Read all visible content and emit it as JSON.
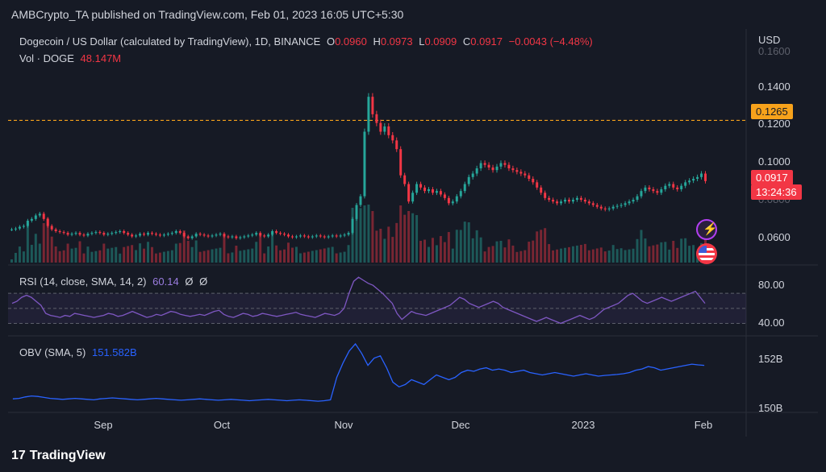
{
  "header": {
    "publisher_text": "AMBCrypto_TA published on TradingView.com, Feb 01, 2023 16:05 UTC+5:30"
  },
  "main_legend": {
    "symbol": "Dogecoin / US Dollar (calculated by TradingView), 1D, BINANCE",
    "o_label": "O",
    "o_value": "0.0960",
    "h_label": "H",
    "h_value": "0.0973",
    "l_label": "L",
    "l_value": "0.0909",
    "c_label": "C",
    "c_value": "0.0917",
    "change": "−0.0043 (−4.48%)"
  },
  "vol_legend": {
    "label": "Vol · DOGE",
    "value": "48.147M"
  },
  "rsi_legend": {
    "label": "RSI (14, close, SMA, 14, 2)",
    "value": "60.14",
    "extra1": "Ø",
    "extra2": "Ø"
  },
  "obv_legend": {
    "label": "OBV (SMA, 5)",
    "value": "151.582B"
  },
  "price_scale": {
    "currency": "USD",
    "ticks": [
      "0.1400",
      "0.1200",
      "0.1000",
      "0.0800",
      "0.0600"
    ],
    "top_partial": "0.1600"
  },
  "rsi_scale": {
    "ticks": [
      "80.00",
      "40.00"
    ]
  },
  "obv_scale": {
    "ticks": [
      "152B",
      "150B"
    ]
  },
  "x_axis": {
    "ticks": [
      "Sep",
      "Oct",
      "Nov",
      "Dec",
      "2023",
      "Feb"
    ]
  },
  "tags": {
    "level": "0.1265",
    "last_price": "0.0917",
    "countdown": "13:24:36"
  },
  "footer": {
    "brand": "TradingView",
    "brand_mark": "17"
  },
  "colors": {
    "up": "#26a69a",
    "down": "#f23645",
    "rsi": "#7e57c2",
    "obv": "#2962ff",
    "level": "#f7a21b",
    "background": "#161a25"
  },
  "icons": [
    "flash-icon",
    "us-flag-icon"
  ],
  "chart_data": [
    {
      "type": "line",
      "title": "Dogecoin / US Dollar (calculated by TradingView), 1D, BINANCE",
      "ylabel": "USD",
      "ylim": [
        0.045,
        0.165
      ],
      "xlabels": [
        "Sep",
        "Oct",
        "Nov",
        "Dec",
        "2023",
        "Feb"
      ],
      "horizontal_line": 0.1265,
      "series": [
        {
          "name": "DOGE/USD close",
          "values": [
            0.064,
            0.0645,
            0.0655,
            0.066,
            0.069,
            0.07,
            0.072,
            0.073,
            0.07,
            0.066,
            0.064,
            0.063,
            0.0625,
            0.062,
            0.061,
            0.0615,
            0.062,
            0.061,
            0.0605,
            0.0615,
            0.062,
            0.0625,
            0.062,
            0.061,
            0.0615,
            0.062,
            0.0625,
            0.063,
            0.062,
            0.061,
            0.06,
            0.0605,
            0.0615,
            0.061,
            0.062,
            0.0615,
            0.061,
            0.0605,
            0.061,
            0.0615,
            0.062,
            0.063,
            0.062,
            0.06,
            0.059,
            0.06,
            0.0615,
            0.061,
            0.0605,
            0.06,
            0.0605,
            0.061,
            0.0615,
            0.06,
            0.0595,
            0.06,
            0.059,
            0.0595,
            0.06,
            0.0605,
            0.061,
            0.062,
            0.0605,
            0.06,
            0.061,
            0.063,
            0.062,
            0.0615,
            0.061,
            0.06,
            0.0595,
            0.06,
            0.0605,
            0.06,
            0.0595,
            0.06,
            0.0605,
            0.06,
            0.0595,
            0.06,
            0.0605,
            0.06,
            0.0605,
            0.061,
            0.062,
            0.07,
            0.078,
            0.083,
            0.12,
            0.14,
            0.13,
            0.125,
            0.12,
            0.123,
            0.118,
            0.115,
            0.11,
            0.095,
            0.09,
            0.08,
            0.085,
            0.09,
            0.088,
            0.086,
            0.087,
            0.085,
            0.086,
            0.084,
            0.082,
            0.079,
            0.08,
            0.083,
            0.086,
            0.09,
            0.094,
            0.096,
            0.099,
            0.102,
            0.101,
            0.0995,
            0.098,
            0.1,
            0.102,
            0.101,
            0.099,
            0.098,
            0.097,
            0.096,
            0.095,
            0.093,
            0.091,
            0.088,
            0.085,
            0.082,
            0.081,
            0.08,
            0.079,
            0.08,
            0.081,
            0.08,
            0.081,
            0.082,
            0.081,
            0.08,
            0.079,
            0.078,
            0.077,
            0.076,
            0.0755,
            0.076,
            0.077,
            0.0775,
            0.078,
            0.079,
            0.08,
            0.081,
            0.083,
            0.086,
            0.088,
            0.087,
            0.086,
            0.085,
            0.087,
            0.089,
            0.09,
            0.088,
            0.087,
            0.089,
            0.091,
            0.092,
            0.093,
            0.094,
            0.096,
            0.0917
          ]
        }
      ]
    },
    {
      "type": "bar",
      "title": "Vol · DOGE",
      "series": [
        {
          "name": "Vol · DOGE",
          "last_value": "48.147M"
        }
      ]
    },
    {
      "type": "line",
      "title": "RSI (14, close, SMA, 14, 2)",
      "ylim": [
        30,
        95
      ],
      "band": [
        40,
        70
      ],
      "series": [
        {
          "name": "RSI",
          "values": [
            60,
            62,
            66,
            68,
            66,
            62,
            58,
            50,
            48,
            47,
            46,
            48,
            47,
            50,
            49,
            48,
            47,
            46,
            47,
            48,
            50,
            49,
            47,
            48,
            50,
            52,
            50,
            48,
            46,
            47,
            49,
            48,
            50,
            52,
            51,
            49,
            48,
            47,
            48,
            49,
            48,
            50,
            52,
            53,
            49,
            47,
            46,
            48,
            50,
            49,
            47,
            48,
            50,
            49,
            48,
            47,
            48,
            49,
            50,
            51,
            49,
            48,
            47,
            46,
            48,
            50,
            49,
            48,
            50,
            55,
            70,
            82,
            86,
            83,
            80,
            78,
            74,
            70,
            65,
            60,
            50,
            44,
            48,
            52,
            50,
            49,
            48,
            50,
            52,
            54,
            56,
            58,
            62,
            66,
            64,
            60,
            58,
            56,
            58,
            60,
            62,
            60,
            56,
            54,
            52,
            50,
            48,
            46,
            44,
            42,
            44,
            46,
            44,
            42,
            40,
            42,
            44,
            46,
            48,
            46,
            44,
            46,
            50,
            54,
            56,
            58,
            60,
            64,
            68,
            70,
            66,
            62,
            60,
            62,
            64,
            66,
            64,
            62,
            64,
            66,
            68,
            70,
            72,
            66,
            60
          ]
        }
      ]
    },
    {
      "type": "line",
      "title": "OBV (SMA, 5)",
      "ylim": [
        149.6,
        152.6
      ],
      "series": [
        {
          "name": "OBV (SMA, 5)",
          "values": [
            150.1,
            150.12,
            150.18,
            150.22,
            150.2,
            150.16,
            150.12,
            150.1,
            150.08,
            150.1,
            150.12,
            150.1,
            150.08,
            150.06,
            150.1,
            150.12,
            150.14,
            150.12,
            150.1,
            150.08,
            150.06,
            150.08,
            150.1,
            150.12,
            150.1,
            150.08,
            150.06,
            150.04,
            150.06,
            150.08,
            150.1,
            150.08,
            150.06,
            150.04,
            150.06,
            150.08,
            150.06,
            150.04,
            150.02,
            150.04,
            150.06,
            150.08,
            150.06,
            150.04,
            150.02,
            150.04,
            150.06,
            150.04,
            150.02,
            150.0,
            150.02,
            150.06,
            151.0,
            151.6,
            152.1,
            152.4,
            152.0,
            151.5,
            151.8,
            151.9,
            151.4,
            150.8,
            150.6,
            150.7,
            150.9,
            150.8,
            150.7,
            150.9,
            151.1,
            151.0,
            150.9,
            151.0,
            151.2,
            151.3,
            151.25,
            151.35,
            151.4,
            151.3,
            151.35,
            151.3,
            151.2,
            151.25,
            151.3,
            151.2,
            151.15,
            151.1,
            151.15,
            151.2,
            151.15,
            151.1,
            151.05,
            151.1,
            151.15,
            151.1,
            151.05,
            151.08,
            151.1,
            151.12,
            151.15,
            151.2,
            151.3,
            151.35,
            151.45,
            151.4,
            151.3,
            151.35,
            151.4,
            151.45,
            151.5,
            151.55,
            151.52,
            151.5
          ]
        }
      ]
    }
  ]
}
